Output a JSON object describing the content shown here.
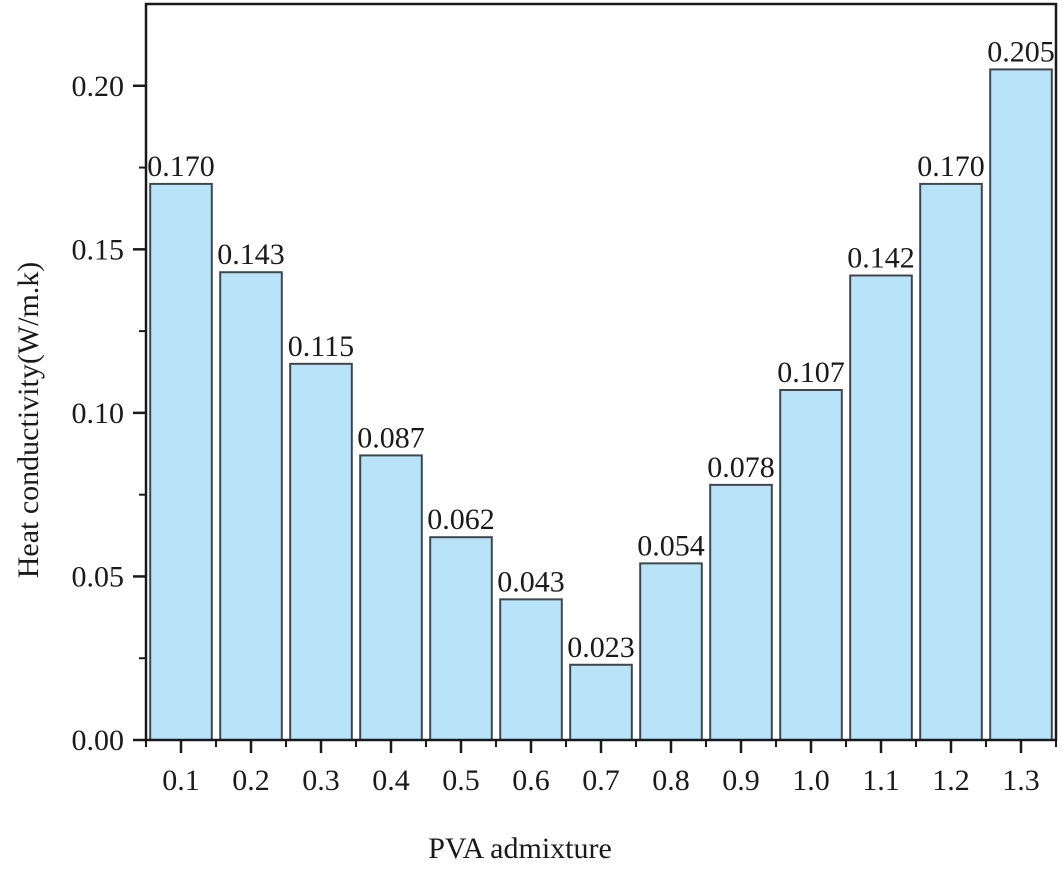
{
  "chart_data": {
    "type": "bar",
    "title": "",
    "xlabel": "PVA admixture",
    "ylabel": "Heat conductivity(W/m.k)",
    "categories": [
      "0.1",
      "0.2",
      "0.3",
      "0.4",
      "0.5",
      "0.6",
      "0.7",
      "0.8",
      "0.9",
      "1.0",
      "1.1",
      "1.2",
      "1.3"
    ],
    "values": [
      0.17,
      0.143,
      0.115,
      0.087,
      0.062,
      0.043,
      0.023,
      0.054,
      0.078,
      0.107,
      0.142,
      0.17,
      0.205
    ],
    "value_labels": [
      "0.170",
      "0.143",
      "0.115",
      "0.087",
      "0.062",
      "0.043",
      "0.023",
      "0.054",
      "0.078",
      "0.107",
      "0.142",
      "0.170",
      "0.205"
    ],
    "ylim": [
      0,
      0.225
    ],
    "yticks": [
      0.0,
      0.05,
      0.1,
      0.15,
      0.2
    ],
    "ytick_labels": [
      "0.00",
      "0.05",
      "0.10",
      "0.15",
      "0.20"
    ],
    "grid": false,
    "legend": null,
    "colors": {
      "bar_fill": "#b9e3f9",
      "bar_stroke": "#3b4853",
      "axis": "#1a1a1a"
    }
  }
}
